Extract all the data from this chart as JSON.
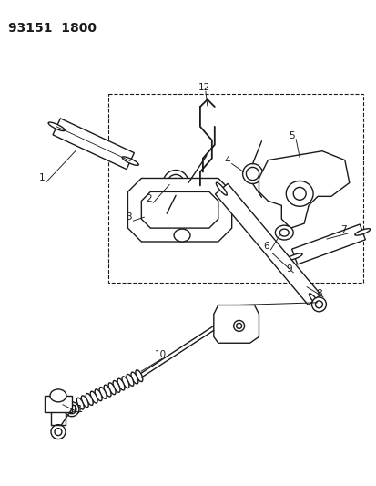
{
  "title": "93151  1800",
  "background_color": "#ffffff",
  "line_color": "#1a1a1a",
  "fig_width": 4.14,
  "fig_height": 5.33,
  "dpi": 100
}
